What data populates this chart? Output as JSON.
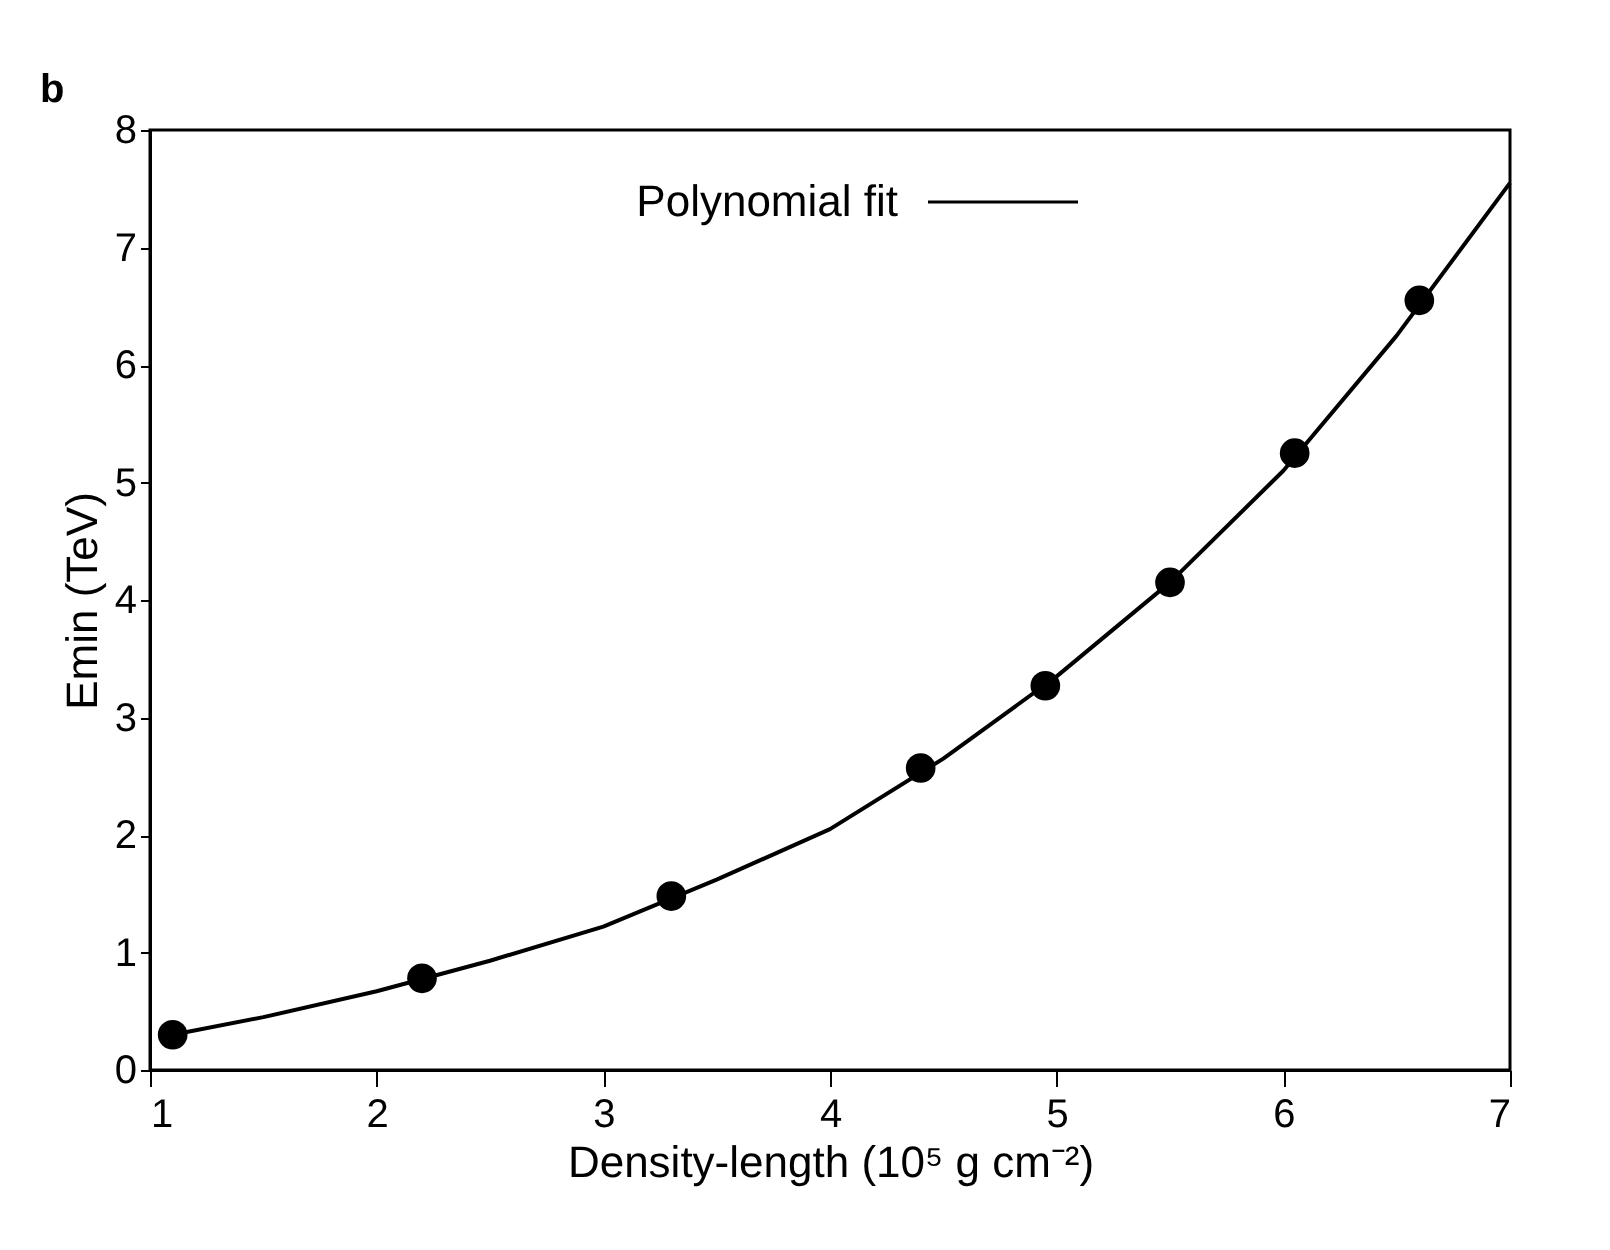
{
  "chart_data": {
    "type": "scatter",
    "xlabel": "Density-length (10⁵ g cm⁻²)",
    "ylabel": "Emin (TeV)",
    "annotations": [
      "b"
    ],
    "xlim": [
      1,
      7
    ],
    "xticks": [
      1,
      2,
      3,
      4,
      5,
      6,
      7
    ],
    "ylim": [
      0,
      8
    ],
    "yticks": [
      0,
      1,
      2,
      3,
      4,
      5,
      6,
      7,
      8
    ],
    "grid": false,
    "legend": "top",
    "series": [
      {
        "type": "scatter",
        "color": "#000000",
        "marker": "circle",
        "x": [
          1.1,
          2.2,
          3.3,
          4.4,
          4.95,
          5.5,
          6.05,
          6.6
        ],
        "values": [
          0.3,
          0.78,
          1.48,
          2.57,
          3.27,
          4.15,
          5.25,
          6.55
        ]
      },
      {
        "type": "line",
        "name": "Polynomial fit",
        "color": "#000000",
        "line_style": "solid",
        "x": [
          1.1,
          1.5,
          2,
          2.5,
          3,
          3.5,
          4,
          4.5,
          5,
          5.5,
          6,
          6.5,
          7
        ],
        "values": [
          0.3,
          0.45,
          0.67,
          0.93,
          1.22,
          1.62,
          2.05,
          2.65,
          3.35,
          4.15,
          5.1,
          6.25,
          7.55
        ]
      }
    ]
  }
}
